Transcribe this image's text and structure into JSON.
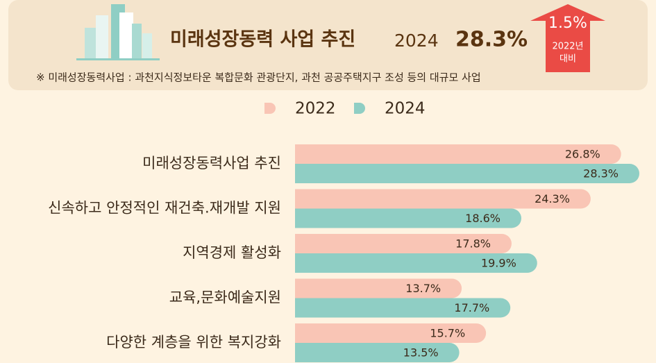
{
  "header": {
    "title": "미래성장동력 사업 추진",
    "year": "2024",
    "value": "28.3%",
    "change": "1.5%",
    "change_note": [
      "2022년",
      "대비"
    ],
    "footnote": "※ 미래성장동력사업 : 과천지식정보타운 복합문화 관광단지, 과천 공공주택지구 조성 등의 대규모 사업"
  },
  "chart_data": {
    "type": "bar",
    "orientation": "horizontal",
    "categories": [
      "미래성장동력사업 추진",
      "신속하고 안정적인 재건축.재개발 지원",
      "지역경제 활성화",
      "교육,문화예술지원",
      "다양한 계층을 위한 복지강화"
    ],
    "series": [
      {
        "name": "2022",
        "color": "#f9c5b5",
        "values": [
          26.8,
          24.3,
          17.8,
          13.7,
          15.7
        ],
        "value_labels": [
          "26.8%",
          "24.3%",
          "17.8%",
          "13.7%",
          "15.7%"
        ]
      },
      {
        "name": "2024",
        "color": "#8fcec4",
        "values": [
          28.3,
          18.6,
          19.9,
          17.7,
          13.5
        ],
        "value_labels": [
          "28.3%",
          "18.6%",
          "19.9%",
          "17.7%",
          "13.5%"
        ]
      }
    ]
  }
}
